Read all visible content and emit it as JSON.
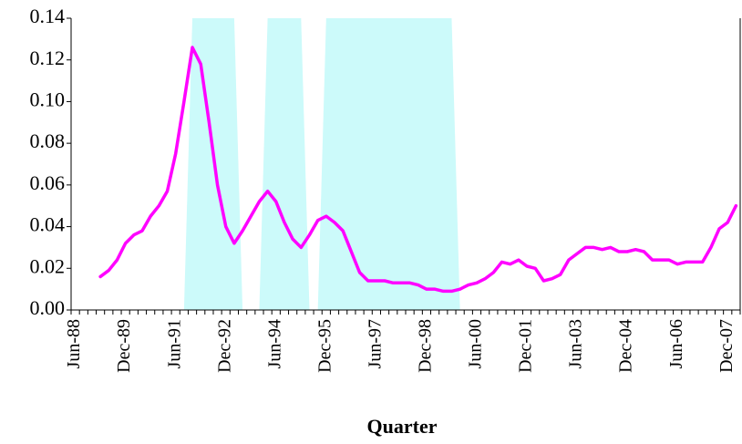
{
  "chart_data": {
    "type": "line",
    "x_label": "Quarter",
    "categories": [
      "Jun-88",
      null,
      null,
      null,
      null,
      null,
      "Dec-89",
      null,
      null,
      null,
      null,
      null,
      "Jun-91",
      null,
      null,
      null,
      null,
      null,
      "Dec-92",
      null,
      null,
      null,
      null,
      null,
      "Jun-94",
      null,
      null,
      null,
      null,
      null,
      "Dec-95",
      null,
      null,
      null,
      null,
      null,
      "Jun-97",
      null,
      null,
      null,
      null,
      null,
      "Dec-98",
      null,
      null,
      null,
      null,
      null,
      "Jun-00",
      null,
      null,
      null,
      null,
      null,
      "Dec-01",
      null,
      null,
      null,
      null,
      null,
      "Jun-03",
      null,
      null,
      null,
      null,
      null,
      "Dec-04",
      null,
      null,
      null,
      null,
      null,
      "Jun-06",
      null,
      null,
      null,
      null,
      null,
      "Dec-07",
      null
    ],
    "series": [
      {
        "type": "area",
        "color": "#ccfafa",
        "values": [
          0,
          0,
          0,
          0,
          0,
          0,
          0,
          0,
          0,
          0,
          0,
          0,
          0,
          0,
          0.14,
          0.14,
          0.14,
          0.14,
          0.14,
          0.14,
          0,
          0,
          0,
          0.14,
          0.14,
          0.14,
          0.14,
          0.14,
          0,
          0,
          0.14,
          0.14,
          0.14,
          0.14,
          0.14,
          0.14,
          0.14,
          0.14,
          0.14,
          0.14,
          0.14,
          0.14,
          0.14,
          0.14,
          0.14,
          0.14,
          0,
          0,
          0,
          0,
          0,
          0,
          0,
          0,
          0,
          0,
          0,
          0,
          0,
          0,
          0,
          0,
          0,
          0,
          0,
          0,
          0,
          0,
          0,
          0,
          0,
          0,
          0,
          0,
          0,
          0,
          0,
          0,
          0,
          0
        ]
      },
      {
        "type": "line",
        "color": "#ff00ff",
        "values": [
          null,
          null,
          null,
          0.016,
          0.019,
          0.024,
          0.032,
          0.036,
          0.038,
          0.045,
          0.05,
          0.057,
          0.075,
          0.1,
          0.126,
          0.118,
          0.09,
          0.06,
          0.04,
          0.032,
          0.038,
          0.045,
          0.052,
          0.057,
          0.052,
          0.042,
          0.034,
          0.03,
          0.036,
          0.043,
          0.045,
          0.042,
          0.038,
          0.028,
          0.018,
          0.014,
          0.014,
          0.014,
          0.013,
          0.013,
          0.013,
          0.012,
          0.01,
          0.01,
          0.009,
          0.009,
          0.01,
          0.012,
          0.013,
          0.015,
          0.018,
          0.023,
          0.022,
          0.024,
          0.021,
          0.02,
          0.014,
          0.015,
          0.017,
          0.024,
          0.027,
          0.03,
          0.03,
          0.029,
          0.03,
          0.028,
          0.028,
          0.029,
          0.028,
          0.024,
          0.024,
          0.024,
          0.022,
          0.023,
          0.023,
          0.023,
          0.03,
          0.039,
          0.042,
          0.05
        ]
      }
    ],
    "ylim": [
      0,
      0.14
    ],
    "yticks": [
      {
        "value": 0,
        "label": "0.00"
      },
      {
        "value": 0.02,
        "label": "0.02"
      },
      {
        "value": 0.04,
        "label": "0.04"
      },
      {
        "value": 0.06,
        "label": "0.06"
      },
      {
        "value": 0.08,
        "label": "0.08"
      },
      {
        "value": 0.1,
        "label": "0.10"
      },
      {
        "value": 0.12,
        "label": "0.12"
      },
      {
        "value": 0.14,
        "label": "0.14"
      }
    ],
    "grid": false
  }
}
